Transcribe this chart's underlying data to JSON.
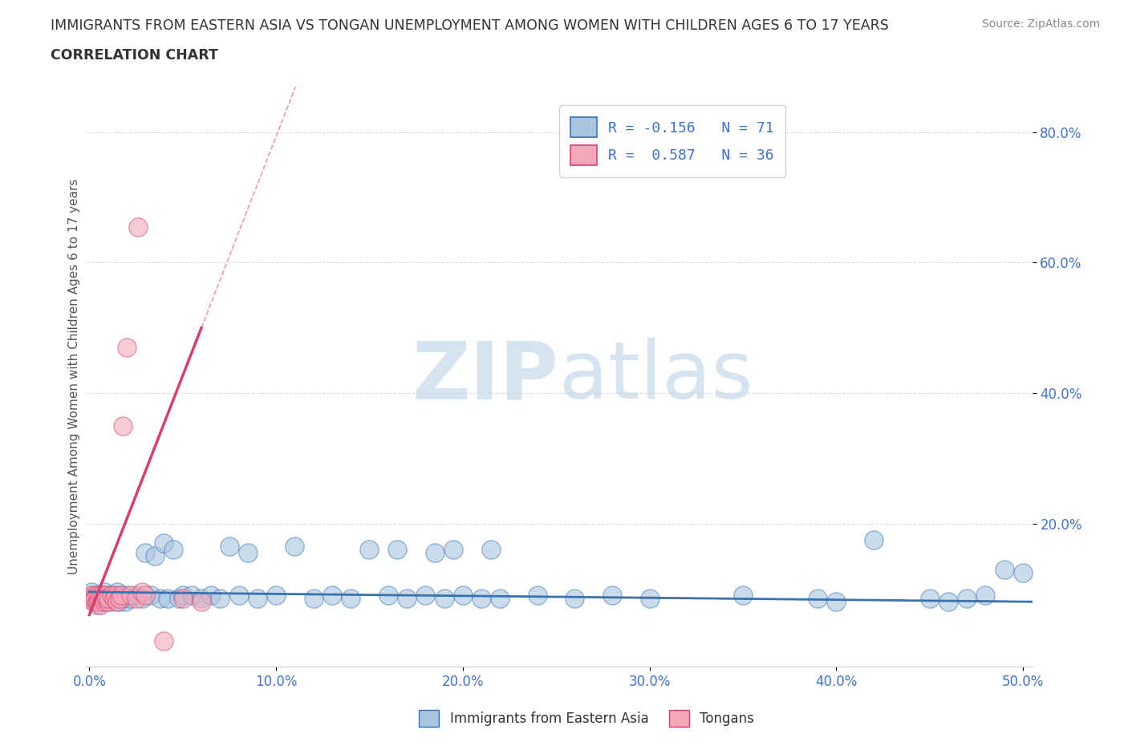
{
  "title": "IMMIGRANTS FROM EASTERN ASIA VS TONGAN UNEMPLOYMENT AMONG WOMEN WITH CHILDREN AGES 6 TO 17 YEARS",
  "subtitle": "CORRELATION CHART",
  "source": "Source: ZipAtlas.com",
  "ylabel": "Unemployment Among Women with Children Ages 6 to 17 years",
  "xlim": [
    -0.002,
    0.505
  ],
  "ylim": [
    -0.02,
    0.87
  ],
  "xtick_labels": [
    "0.0%",
    "10.0%",
    "20.0%",
    "30.0%",
    "40.0%",
    "50.0%"
  ],
  "xtick_vals": [
    0.0,
    0.1,
    0.2,
    0.3,
    0.4,
    0.5
  ],
  "ytick_labels": [
    "20.0%",
    "40.0%",
    "60.0%",
    "80.0%"
  ],
  "ytick_vals": [
    0.2,
    0.4,
    0.6,
    0.8
  ],
  "blue_R": -0.156,
  "blue_N": 71,
  "pink_R": 0.587,
  "pink_N": 36,
  "blue_color": "#a8c4e0",
  "pink_color": "#f4a7b9",
  "blue_trend_color": "#3a72b0",
  "pink_trend_color": "#d44070",
  "blue_scatter": [
    [
      0.001,
      0.095
    ],
    [
      0.002,
      0.085
    ],
    [
      0.003,
      0.08
    ],
    [
      0.004,
      0.075
    ],
    [
      0.005,
      0.09
    ],
    [
      0.006,
      0.085
    ],
    [
      0.007,
      0.08
    ],
    [
      0.008,
      0.095
    ],
    [
      0.009,
      0.085
    ],
    [
      0.01,
      0.09
    ],
    [
      0.011,
      0.085
    ],
    [
      0.012,
      0.08
    ],
    [
      0.013,
      0.09
    ],
    [
      0.014,
      0.085
    ],
    [
      0.015,
      0.095
    ],
    [
      0.016,
      0.08
    ],
    [
      0.017,
      0.09
    ],
    [
      0.018,
      0.085
    ],
    [
      0.019,
      0.08
    ],
    [
      0.02,
      0.09
    ],
    [
      0.022,
      0.085
    ],
    [
      0.025,
      0.09
    ],
    [
      0.028,
      0.085
    ],
    [
      0.03,
      0.155
    ],
    [
      0.033,
      0.09
    ],
    [
      0.035,
      0.15
    ],
    [
      0.038,
      0.085
    ],
    [
      0.04,
      0.17
    ],
    [
      0.042,
      0.085
    ],
    [
      0.045,
      0.16
    ],
    [
      0.048,
      0.085
    ],
    [
      0.05,
      0.09
    ],
    [
      0.055,
      0.09
    ],
    [
      0.06,
      0.085
    ],
    [
      0.065,
      0.09
    ],
    [
      0.07,
      0.085
    ],
    [
      0.075,
      0.165
    ],
    [
      0.08,
      0.09
    ],
    [
      0.085,
      0.155
    ],
    [
      0.09,
      0.085
    ],
    [
      0.1,
      0.09
    ],
    [
      0.11,
      0.165
    ],
    [
      0.12,
      0.085
    ],
    [
      0.13,
      0.09
    ],
    [
      0.14,
      0.085
    ],
    [
      0.15,
      0.16
    ],
    [
      0.16,
      0.09
    ],
    [
      0.165,
      0.16
    ],
    [
      0.17,
      0.085
    ],
    [
      0.18,
      0.09
    ],
    [
      0.185,
      0.155
    ],
    [
      0.19,
      0.085
    ],
    [
      0.195,
      0.16
    ],
    [
      0.2,
      0.09
    ],
    [
      0.21,
      0.085
    ],
    [
      0.215,
      0.16
    ],
    [
      0.22,
      0.085
    ],
    [
      0.24,
      0.09
    ],
    [
      0.26,
      0.085
    ],
    [
      0.28,
      0.09
    ],
    [
      0.3,
      0.085
    ],
    [
      0.35,
      0.09
    ],
    [
      0.39,
      0.085
    ],
    [
      0.4,
      0.08
    ],
    [
      0.42,
      0.175
    ],
    [
      0.45,
      0.085
    ],
    [
      0.46,
      0.08
    ],
    [
      0.47,
      0.085
    ],
    [
      0.48,
      0.09
    ],
    [
      0.49,
      0.13
    ],
    [
      0.5,
      0.125
    ]
  ],
  "pink_scatter": [
    [
      0.0,
      0.085
    ],
    [
      0.001,
      0.09
    ],
    [
      0.002,
      0.085
    ],
    [
      0.002,
      0.08
    ],
    [
      0.003,
      0.09
    ],
    [
      0.003,
      0.085
    ],
    [
      0.004,
      0.08
    ],
    [
      0.004,
      0.09
    ],
    [
      0.005,
      0.085
    ],
    [
      0.005,
      0.08
    ],
    [
      0.006,
      0.09
    ],
    [
      0.006,
      0.075
    ],
    [
      0.007,
      0.085
    ],
    [
      0.007,
      0.09
    ],
    [
      0.008,
      0.085
    ],
    [
      0.008,
      0.08
    ],
    [
      0.009,
      0.09
    ],
    [
      0.009,
      0.085
    ],
    [
      0.01,
      0.08
    ],
    [
      0.01,
      0.085
    ],
    [
      0.012,
      0.09
    ],
    [
      0.013,
      0.085
    ],
    [
      0.014,
      0.09
    ],
    [
      0.015,
      0.08
    ],
    [
      0.016,
      0.085
    ],
    [
      0.017,
      0.09
    ],
    [
      0.018,
      0.35
    ],
    [
      0.02,
      0.47
    ],
    [
      0.022,
      0.09
    ],
    [
      0.025,
      0.085
    ],
    [
      0.026,
      0.655
    ],
    [
      0.028,
      0.095
    ],
    [
      0.03,
      0.09
    ],
    [
      0.04,
      0.02
    ],
    [
      0.05,
      0.085
    ],
    [
      0.06,
      0.08
    ]
  ],
  "legend_blue_label": "Immigrants from Eastern Asia",
  "legend_pink_label": "Tongans",
  "watermark_zip": "ZIP",
  "watermark_atlas": "atlas",
  "background_color": "#ffffff",
  "grid_color": "#dddddd"
}
